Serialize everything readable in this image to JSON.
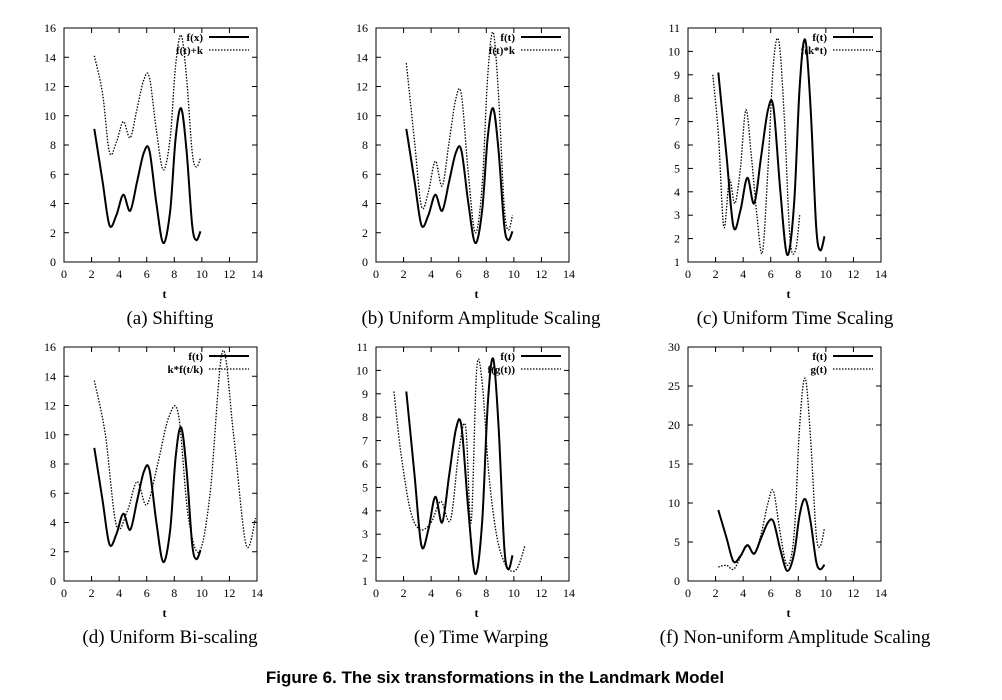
{
  "figure_caption": "Figure 6. The six transformations in the Landmark Model",
  "chart_data": [
    {
      "type": "line",
      "caption": "(a) Shifting",
      "xlabel": "t",
      "xlim": [
        0,
        14
      ],
      "ylim": [
        0,
        16
      ],
      "xticks": [
        0,
        2,
        4,
        6,
        8,
        10,
        12,
        14
      ],
      "yticks": [
        0,
        2,
        4,
        6,
        8,
        10,
        12,
        14,
        16
      ],
      "legend_position": "top-right",
      "series": [
        {
          "name": "f(x)",
          "style": "solid",
          "x": [
            2.2,
            2.8,
            3.3,
            3.8,
            4.3,
            4.8,
            5.3,
            5.8,
            6.2,
            6.7,
            7.2,
            7.7,
            8.1,
            8.5,
            8.9,
            9.3,
            9.6,
            9.9
          ],
          "y": [
            9.1,
            5.5,
            2.5,
            3.2,
            4.6,
            3.5,
            5.5,
            7.5,
            7.6,
            4.0,
            1.3,
            3.5,
            8.5,
            10.5,
            7.5,
            2.5,
            1.5,
            2.1
          ]
        },
        {
          "name": "f(t)+k",
          "style": "dotted",
          "x": [
            2.2,
            2.8,
            3.3,
            3.8,
            4.3,
            4.8,
            5.3,
            5.8,
            6.2,
            6.7,
            7.2,
            7.7,
            8.1,
            8.5,
            8.9,
            9.3,
            9.6,
            9.9
          ],
          "y": [
            14.1,
            11.5,
            7.5,
            8.2,
            9.6,
            8.5,
            10.5,
            12.5,
            12.6,
            9.0,
            6.3,
            8.5,
            13.5,
            15.5,
            12.5,
            7.5,
            6.5,
            7.1
          ]
        }
      ]
    },
    {
      "type": "line",
      "caption": "(b) Uniform Amplitude Scaling",
      "xlabel": "t",
      "xlim": [
        0,
        14
      ],
      "ylim": [
        0,
        16
      ],
      "xticks": [
        0,
        2,
        4,
        6,
        8,
        10,
        12,
        14
      ],
      "yticks": [
        0,
        2,
        4,
        6,
        8,
        10,
        12,
        14,
        16
      ],
      "legend_position": "top-right",
      "series": [
        {
          "name": "f(t)",
          "style": "solid",
          "x": [
            2.2,
            2.8,
            3.3,
            3.8,
            4.3,
            4.8,
            5.3,
            5.8,
            6.2,
            6.7,
            7.2,
            7.7,
            8.1,
            8.5,
            8.9,
            9.3,
            9.6,
            9.9
          ],
          "y": [
            9.1,
            5.5,
            2.5,
            3.2,
            4.6,
            3.5,
            5.5,
            7.5,
            7.6,
            4.0,
            1.3,
            3.5,
            8.5,
            10.5,
            7.5,
            2.5,
            1.5,
            2.1
          ]
        },
        {
          "name": "f(t)*k",
          "style": "dotted",
          "x": [
            2.2,
            2.8,
            3.3,
            3.8,
            4.3,
            4.8,
            5.3,
            5.8,
            6.2,
            6.7,
            7.2,
            7.7,
            8.1,
            8.5,
            8.9,
            9.3,
            9.6,
            9.9
          ],
          "y": [
            13.6,
            8.2,
            3.8,
            4.8,
            6.9,
            5.2,
            8.2,
            11.2,
            11.4,
            6.0,
            2.0,
            5.2,
            12.7,
            15.7,
            11.2,
            3.8,
            2.2,
            3.2
          ]
        }
      ]
    },
    {
      "type": "line",
      "caption": "(c) Uniform Time Scaling",
      "xlabel": "t",
      "xlim": [
        0,
        14
      ],
      "ylim": [
        1,
        11
      ],
      "xticks": [
        0,
        2,
        4,
        6,
        8,
        10,
        12,
        14
      ],
      "yticks": [
        1,
        2,
        3,
        4,
        5,
        6,
        7,
        8,
        9,
        10,
        11
      ],
      "legend_position": "top-right",
      "series": [
        {
          "name": "f(t)",
          "style": "solid",
          "x": [
            2.2,
            2.8,
            3.3,
            3.8,
            4.3,
            4.8,
            5.3,
            5.8,
            6.2,
            6.7,
            7.2,
            7.7,
            8.1,
            8.5,
            8.9,
            9.3,
            9.6,
            9.9
          ],
          "y": [
            9.1,
            5.5,
            2.5,
            3.2,
            4.6,
            3.5,
            5.5,
            7.5,
            7.6,
            4.0,
            1.3,
            3.5,
            8.5,
            10.5,
            7.5,
            2.5,
            1.5,
            2.1
          ]
        },
        {
          "name": "f(k*t)",
          "style": "dotted",
          "x": [
            1.8,
            2.2,
            2.6,
            3.0,
            3.4,
            3.8,
            4.2,
            4.6,
            5.0,
            5.4,
            5.8,
            6.2,
            6.6,
            7.0,
            7.4,
            7.8,
            8.1
          ],
          "y": [
            9.0,
            6.5,
            2.5,
            4.5,
            3.5,
            5.0,
            7.5,
            5.5,
            3.0,
            1.4,
            5.0,
            9.5,
            10.4,
            7.0,
            2.0,
            1.5,
            3.0
          ]
        }
      ]
    },
    {
      "type": "line",
      "caption": "(d) Uniform Bi-scaling",
      "xlabel": "t",
      "xlim": [
        0,
        14
      ],
      "ylim": [
        0,
        16
      ],
      "xticks": [
        0,
        2,
        4,
        6,
        8,
        10,
        12,
        14
      ],
      "yticks": [
        0,
        2,
        4,
        6,
        8,
        10,
        12,
        14,
        16
      ],
      "legend_position": "top-right",
      "series": [
        {
          "name": "f(t)",
          "style": "solid",
          "x": [
            2.2,
            2.8,
            3.3,
            3.8,
            4.3,
            4.8,
            5.3,
            5.8,
            6.2,
            6.7,
            7.2,
            7.7,
            8.1,
            8.5,
            8.9,
            9.3,
            9.6,
            9.9
          ],
          "y": [
            9.1,
            5.5,
            2.5,
            3.2,
            4.6,
            3.5,
            5.5,
            7.5,
            7.6,
            4.0,
            1.3,
            3.5,
            8.5,
            10.5,
            7.5,
            2.5,
            1.5,
            2.1
          ]
        },
        {
          "name": "k*f(t/k)",
          "style": "dotted",
          "x": [
            2.2,
            3.0,
            3.8,
            4.6,
            5.3,
            6.0,
            6.8,
            7.6,
            8.3,
            9.0,
            9.8,
            10.6,
            11.5,
            12.3,
            13.2,
            13.9
          ],
          "y": [
            13.7,
            10.0,
            3.8,
            4.8,
            6.8,
            5.2,
            8.0,
            11.2,
            11.4,
            4.5,
            2.0,
            6.0,
            15.7,
            10.0,
            2.5,
            4.3
          ]
        }
      ]
    },
    {
      "type": "line",
      "caption": "(e) Time Warping",
      "xlabel": "t",
      "xlim": [
        0,
        14
      ],
      "ylim": [
        1,
        11
      ],
      "xticks": [
        0,
        2,
        4,
        6,
        8,
        10,
        12,
        14
      ],
      "yticks": [
        1,
        2,
        3,
        4,
        5,
        6,
        7,
        8,
        9,
        10,
        11
      ],
      "legend_position": "top-right",
      "series": [
        {
          "name": "f(t)",
          "style": "solid",
          "x": [
            2.2,
            2.8,
            3.3,
            3.8,
            4.3,
            4.8,
            5.3,
            5.8,
            6.2,
            6.7,
            7.2,
            7.7,
            8.1,
            8.5,
            8.9,
            9.3,
            9.6,
            9.9
          ],
          "y": [
            9.1,
            5.5,
            2.5,
            3.2,
            4.6,
            3.5,
            5.5,
            7.5,
            7.6,
            4.0,
            1.3,
            3.5,
            8.5,
            10.5,
            7.5,
            2.5,
            1.5,
            2.1
          ]
        },
        {
          "name": "f(g(t))",
          "style": "dotted",
          "x": [
            1.3,
            1.8,
            2.5,
            3.2,
            4.0,
            4.7,
            5.4,
            6.0,
            6.5,
            6.9,
            7.3,
            7.7,
            8.2,
            8.8,
            9.5,
            10.2,
            10.8
          ],
          "y": [
            9.1,
            6.5,
            4.0,
            3.2,
            3.5,
            4.4,
            3.6,
            6.5,
            7.6,
            3.5,
            10.0,
            9.5,
            5.5,
            2.8,
            1.6,
            1.5,
            2.5
          ]
        }
      ]
    },
    {
      "type": "line",
      "caption": "(f) Non-uniform Amplitude Scaling",
      "xlabel": "t",
      "xlim": [
        0,
        14
      ],
      "ylim": [
        0,
        30
      ],
      "xticks": [
        0,
        2,
        4,
        6,
        8,
        10,
        12,
        14
      ],
      "yticks": [
        0,
        5,
        10,
        15,
        20,
        25,
        30
      ],
      "legend_position": "top-right",
      "series": [
        {
          "name": "f(t)",
          "style": "solid",
          "x": [
            2.2,
            2.8,
            3.3,
            3.8,
            4.3,
            4.8,
            5.3,
            5.8,
            6.2,
            6.7,
            7.2,
            7.7,
            8.1,
            8.5,
            8.9,
            9.3,
            9.6,
            9.9
          ],
          "y": [
            9.1,
            5.5,
            2.5,
            3.2,
            4.6,
            3.5,
            5.5,
            7.5,
            7.6,
            4.0,
            1.3,
            3.5,
            8.5,
            10.5,
            7.5,
            2.5,
            1.5,
            2.1
          ]
        },
        {
          "name": "g(t)",
          "style": "dotted",
          "x": [
            2.2,
            2.8,
            3.3,
            3.8,
            4.3,
            4.8,
            5.3,
            5.8,
            6.2,
            6.7,
            7.2,
            7.7,
            8.1,
            8.5,
            8.9,
            9.3,
            9.6,
            9.9
          ],
          "y": [
            1.8,
            2.0,
            1.5,
            3.0,
            4.5,
            3.6,
            6.0,
            10.0,
            11.5,
            6.0,
            2.0,
            6.0,
            20.0,
            26.0,
            18.0,
            6.0,
            4.5,
            6.8
          ]
        }
      ]
    }
  ]
}
